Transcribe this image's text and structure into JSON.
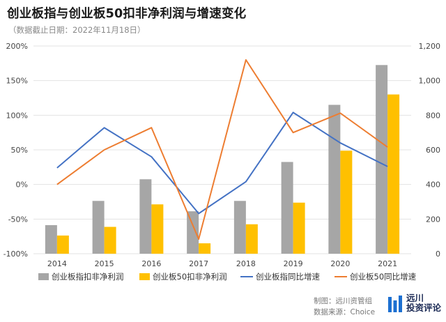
{
  "header": {
    "title": "创业板指与创业板50扣非净利润与增速变化",
    "subtitle": "（数据截止日期：2022年11月18日）"
  },
  "footer": {
    "maker": "制图：远川资管组",
    "source": "数据来源：Choice"
  },
  "logo": {
    "text_line1": "远川",
    "text_line2": "投资评论",
    "color": "#1b6fd1"
  },
  "chart_data": {
    "type": "bar",
    "categories": [
      "2014",
      "2015",
      "2016",
      "2017",
      "2018",
      "2019",
      "2020",
      "2021"
    ],
    "left_axis": {
      "ticks": [
        "200%",
        "150%",
        "100%",
        "50%",
        "0%",
        "-50%",
        "-100%"
      ],
      "ylim": [
        -100,
        200
      ]
    },
    "right_axis": {
      "ticks": [
        "1,200",
        "1,000",
        "800",
        "600",
        "400",
        "200",
        "0"
      ],
      "ylim": [
        0,
        1200
      ]
    },
    "series": [
      {
        "name": "创业板指扣非净利润",
        "kind": "bar",
        "axis": "right",
        "color": "#a6a6a6",
        "values": [
          165,
          305,
          430,
          245,
          305,
          530,
          860,
          1090
        ]
      },
      {
        "name": "创业板50扣非净利润",
        "kind": "bar",
        "axis": "right",
        "color": "#ffc000",
        "values": [
          105,
          155,
          285,
          60,
          170,
          295,
          595,
          920
        ]
      },
      {
        "name": "创业板指同比增速",
        "kind": "line",
        "axis": "left",
        "color": "#4472c4",
        "values": [
          24,
          82,
          40,
          -42,
          4,
          104,
          60,
          26
        ]
      },
      {
        "name": "创业板50同比增速",
        "kind": "line",
        "axis": "left",
        "color": "#ed7d31",
        "values": [
          0,
          50,
          82,
          -79,
          180,
          75,
          103,
          54
        ]
      }
    ],
    "grid": true,
    "legend": "bottom"
  }
}
